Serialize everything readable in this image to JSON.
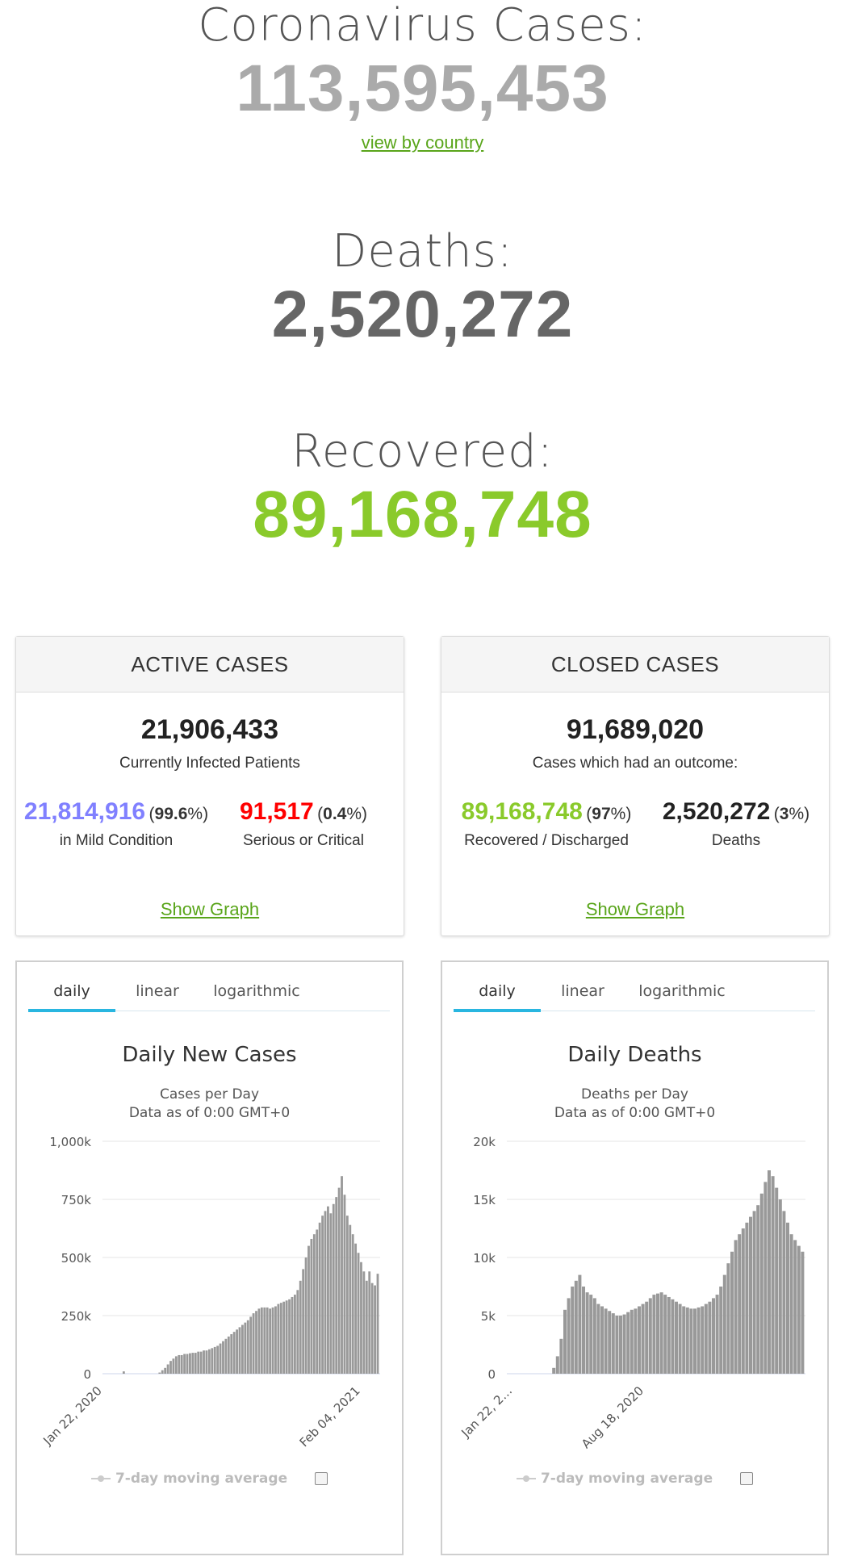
{
  "hero": {
    "cases_label": "Coronavirus Cases:",
    "cases_value": "113,595,453",
    "view_link": "view by country",
    "deaths_label": "Deaths:",
    "deaths_value": "2,520,272",
    "recovered_label": "Recovered:",
    "recovered_value": "89,168,748"
  },
  "colors": {
    "cases": "#aaaaaa",
    "deaths": "#666666",
    "recovered": "#8aca2b",
    "mild": "#8080ff",
    "critical": "#ff0000",
    "link": "#59a51a",
    "tab_active": "#29b6e0"
  },
  "active": {
    "header": "ACTIVE CASES",
    "total": "21,906,433",
    "total_caption": "Currently Infected Patients",
    "mild_value": "21,814,916",
    "mild_pct": "99.6",
    "mild_caption": "in Mild Condition",
    "critical_value": "91,517",
    "critical_pct": "0.4",
    "critical_caption": "Serious or Critical",
    "show_graph": "Show Graph"
  },
  "closed": {
    "header": "CLOSED CASES",
    "total": "91,689,020",
    "total_caption": "Cases which had an outcome:",
    "recovered_value": "89,168,748",
    "recovered_pct": "97",
    "recovered_caption": "Recovered / Discharged",
    "deaths_value": "2,520,272",
    "deaths_pct": "3",
    "deaths_caption": "Deaths",
    "show_graph": "Show Graph"
  },
  "tabs": [
    "daily",
    "linear",
    "logarithmic"
  ],
  "legend_label": "7-day moving average",
  "chart_data": [
    {
      "type": "bar",
      "title": "Daily New Cases",
      "subtitle": "Cases per Day",
      "subtitle2": "Data as of 0:00 GMT+0",
      "yticks": [
        "0",
        "250k",
        "500k",
        "750k",
        "1,000k"
      ],
      "ylim": [
        0,
        1000000
      ],
      "xtick_labels": [
        "Jan 22, 2020",
        "Feb 04, 2021"
      ],
      "grid": true,
      "color": "#999999",
      "series": [
        {
          "values": [
            0,
            0,
            0,
            0,
            0,
            0,
            0,
            10000,
            0,
            0,
            0,
            0,
            0,
            0,
            0,
            0,
            0,
            0,
            0,
            0,
            5000,
            15000,
            25000,
            40000,
            55000,
            65000,
            75000,
            80000,
            80000,
            85000,
            85000,
            88000,
            90000,
            90000,
            95000,
            95000,
            100000,
            100000,
            105000,
            110000,
            115000,
            120000,
            130000,
            140000,
            150000,
            160000,
            170000,
            180000,
            190000,
            200000,
            210000,
            220000,
            230000,
            245000,
            260000,
            270000,
            280000,
            285000,
            285000,
            285000,
            280000,
            285000,
            290000,
            300000,
            305000,
            310000,
            315000,
            320000,
            330000,
            340000,
            360000,
            400000,
            450000,
            500000,
            550000,
            580000,
            600000,
            620000,
            650000,
            680000,
            700000,
            720000,
            690000,
            730000,
            760000,
            800000,
            850000,
            770000,
            680000,
            640000,
            600000,
            560000,
            520000,
            480000,
            440000,
            400000,
            440000,
            390000,
            380000,
            430000
          ]
        }
      ]
    },
    {
      "type": "bar",
      "title": "Daily Deaths",
      "subtitle": "Deaths per Day",
      "subtitle2": "Data as of 0:00 GMT+0",
      "yticks": [
        "0",
        "5k",
        "10k",
        "15k",
        "20k"
      ],
      "ylim": [
        0,
        20000
      ],
      "xtick_labels": [
        "Jan 22, 2…",
        "Aug 18, 2020"
      ],
      "grid": true,
      "color": "#999999",
      "series": [
        {
          "values": [
            0,
            0,
            0,
            0,
            0,
            0,
            0,
            0,
            0,
            0,
            0,
            0,
            500,
            1500,
            3000,
            5500,
            6500,
            7500,
            8000,
            8500,
            7500,
            7000,
            6800,
            6500,
            6000,
            5800,
            5600,
            5400,
            5200,
            5000,
            5000,
            5100,
            5300,
            5500,
            5600,
            5800,
            6000,
            6200,
            6500,
            6800,
            6900,
            7000,
            6800,
            6600,
            6400,
            6200,
            6000,
            5800,
            5700,
            5600,
            5600,
            5700,
            5800,
            6000,
            6200,
            6500,
            6800,
            7500,
            8500,
            9500,
            10500,
            11500,
            12000,
            12500,
            13000,
            13500,
            14000,
            14500,
            15500,
            16500,
            17500,
            17000,
            16000,
            15000,
            14000,
            13000,
            12000,
            11500,
            11000,
            10500
          ]
        }
      ]
    }
  ]
}
